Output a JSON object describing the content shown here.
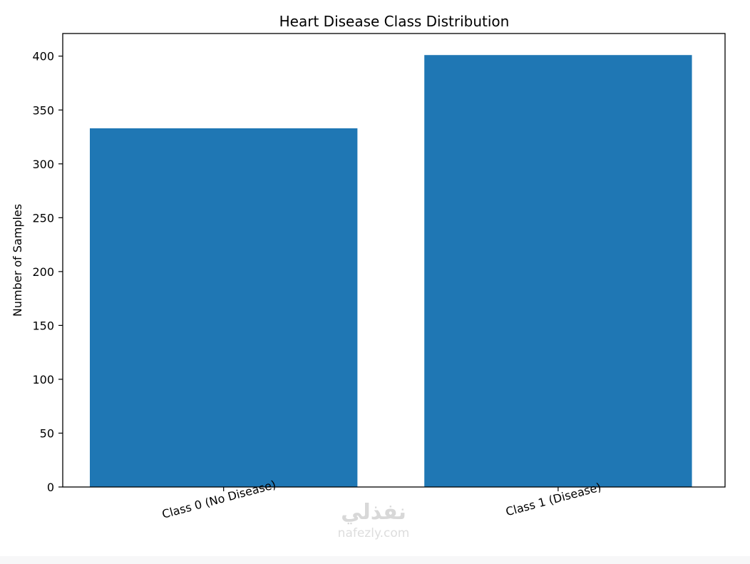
{
  "chart_data": {
    "type": "bar",
    "title": "Heart Disease Class Distribution",
    "xlabel": "",
    "ylabel": "Number of Samples",
    "categories": [
      "Class 0 (No Disease)",
      "Class 1 (Disease)"
    ],
    "values": [
      333,
      401
    ],
    "ylim": [
      0,
      421
    ],
    "yticks": [
      0,
      50,
      100,
      150,
      200,
      250,
      300,
      350,
      400
    ],
    "xtick_rotation_deg": 15,
    "grid": false,
    "legend": "none",
    "bar_color": "#1f77b4"
  },
  "watermark": {
    "brand_icon": "nafezly-logo",
    "site": "nafezly.com"
  }
}
